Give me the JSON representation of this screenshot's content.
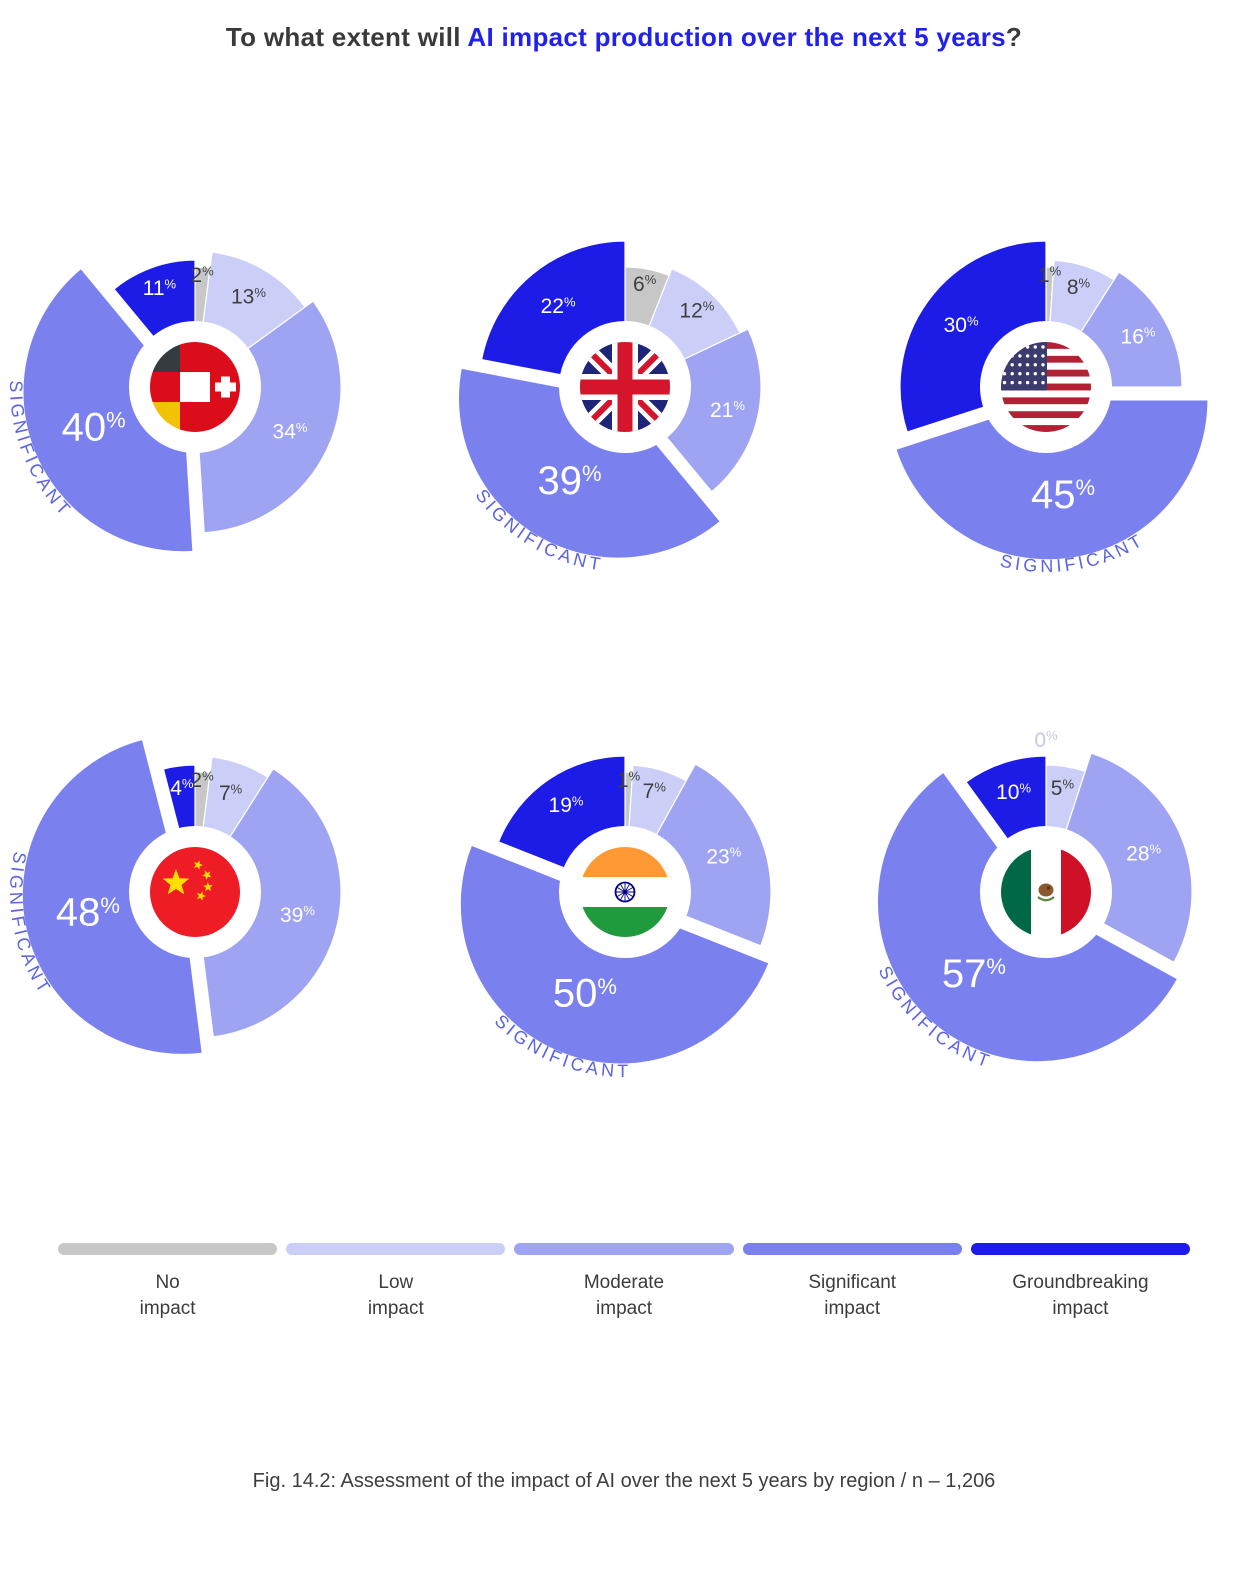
{
  "title": {
    "prefix": "To what extent will ",
    "highlight": "AI impact production over the next 5 years",
    "suffix": "?"
  },
  "chart_data": {
    "type": "pie",
    "variant": "variable-radius-donut",
    "unit": "%",
    "categories": [
      "No impact",
      "Low impact",
      "Moderate impact",
      "Significant impact",
      "Groundbreaking impact"
    ],
    "category_colors": [
      "#c7c7c7",
      "#cbcff7",
      "#9ea4f1",
      "#7a81ee",
      "#1d1ce6"
    ],
    "highlight_category": "Significant impact",
    "highlight_arc_label": "SIGNIFICANT",
    "legend_position": "bottom",
    "series": [
      {
        "region": "Germany-Austria-Switzerland",
        "flag": "dach",
        "values": [
          2,
          13,
          34,
          40,
          11
        ]
      },
      {
        "region": "United Kingdom",
        "flag": "uk",
        "values": [
          6,
          12,
          21,
          39,
          22
        ]
      },
      {
        "region": "United States",
        "flag": "us",
        "values": [
          1,
          8,
          16,
          45,
          30
        ]
      },
      {
        "region": "China",
        "flag": "cn",
        "values": [
          2,
          7,
          39,
          48,
          4
        ]
      },
      {
        "region": "India",
        "flag": "in",
        "values": [
          1,
          7,
          23,
          50,
          19
        ]
      },
      {
        "region": "Mexico",
        "flag": "mx",
        "values": [
          0,
          5,
          28,
          57,
          10
        ]
      }
    ]
  },
  "legend": {
    "items": [
      {
        "line1": "No",
        "line2": "impact",
        "color": "#c7c7c7"
      },
      {
        "line1": "Low",
        "line2": "impact",
        "color": "#cbcff7"
      },
      {
        "line1": "Moderate",
        "line2": "impact",
        "color": "#9ea4f1"
      },
      {
        "line1": "Significant",
        "line2": "impact",
        "color": "#7a81ee"
      },
      {
        "line1": "Groundbreaking",
        "line2": "impact",
        "color": "#1d1ce6"
      }
    ]
  },
  "caption": "Fig. 14.2: Assessment of the impact of AI over the next 5 years by region / n – 1,206"
}
